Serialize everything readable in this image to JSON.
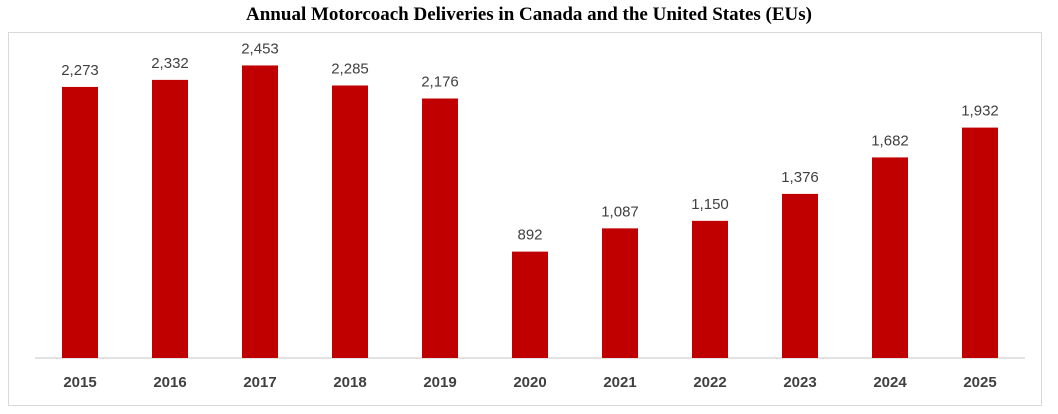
{
  "chart_data": {
    "type": "bar",
    "title": "Annual Motorcoach Deliveries in Canada and the United States (EUs)",
    "categories": [
      "2015",
      "2016",
      "2017",
      "2018",
      "2019",
      "2020",
      "2021",
      "2022",
      "2023",
      "2024",
      "2025"
    ],
    "values": [
      2273,
      2332,
      2453,
      2285,
      2176,
      892,
      1087,
      1150,
      1376,
      1682,
      1932
    ],
    "labels": [
      "2,273",
      "2,332",
      "2,453",
      "2,285",
      "2,176",
      "892",
      "1,087",
      "1,150",
      "1,376",
      "1,682",
      "1,932"
    ],
    "bar_color": "#c00000",
    "ylim": [
      0,
      2700
    ],
    "grid": false,
    "legend": "none",
    "axis_line_color": "#d9d9d9"
  }
}
